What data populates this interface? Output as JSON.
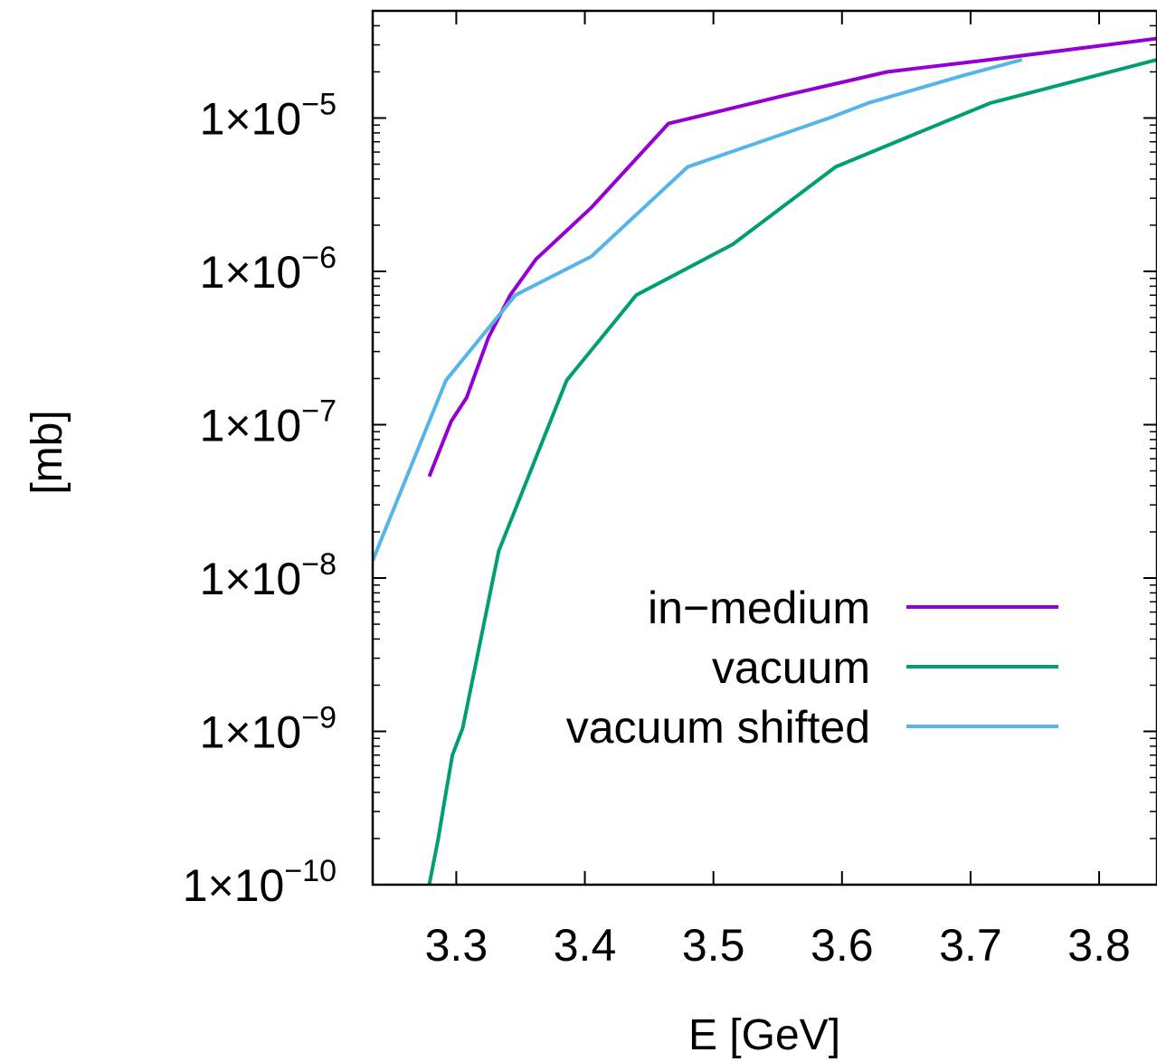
{
  "chart_data": {
    "type": "line",
    "xlabel": "E [GeV]",
    "ylabel": "[mb]",
    "xlim": [
      3.235,
      3.845
    ],
    "ylim": [
      1e-10,
      5e-05
    ],
    "yscale": "log",
    "grid": false,
    "legend_position": "right-center",
    "xticks": [
      "3.3",
      "3.4",
      "3.5",
      "3.6",
      "3.7",
      "3.8"
    ],
    "yticks": [
      {
        "value": 1e-10,
        "mantissa": "1×10",
        "exponent": "−10"
      },
      {
        "value": 1e-09,
        "mantissa": "1×10",
        "exponent": "−9"
      },
      {
        "value": 1e-08,
        "mantissa": "1×10",
        "exponent": "−8"
      },
      {
        "value": 1e-07,
        "mantissa": "1×10",
        "exponent": "−7"
      },
      {
        "value": 1e-06,
        "mantissa": "1×10",
        "exponent": "−6"
      },
      {
        "value": 1e-05,
        "mantissa": "1×10",
        "exponent": "−5"
      }
    ],
    "series": [
      {
        "name": "in−medium",
        "color": "#9400d3",
        "x": [
          3.279,
          3.296,
          3.308,
          3.325,
          3.342,
          3.362,
          3.405,
          3.465,
          3.555,
          3.635,
          3.715,
          3.845
        ],
        "y": [
          4.6e-08,
          1.05e-07,
          1.5e-07,
          3.7e-07,
          7e-07,
          1.2e-06,
          2.6e-06,
          9.2e-06,
          1.4e-05,
          2e-05,
          2.4e-05,
          3.3e-05
        ]
      },
      {
        "name": "vacuum",
        "color": "#009e73",
        "x": [
          3.279,
          3.286,
          3.292,
          3.297,
          3.305,
          3.333,
          3.386,
          3.44,
          3.515,
          3.595,
          3.715,
          3.845
        ],
        "y": [
          1e-10,
          2e-10,
          4e-10,
          7e-10,
          1.05e-09,
          1.5e-08,
          1.95e-07,
          7e-07,
          1.5e-06,
          4.8e-06,
          1.25e-05,
          2.4e-05
        ]
      },
      {
        "name": "vacuum shifted",
        "color": "#56b4e9",
        "x": [
          3.235,
          3.292,
          3.346,
          3.405,
          3.48,
          3.59,
          3.62,
          3.695,
          3.74
        ],
        "y": [
          1.3e-08,
          1.95e-07,
          7e-07,
          1.25e-06,
          4.8e-06,
          1e-05,
          1.25e-05,
          1.9e-05,
          2.4e-05
        ]
      }
    ]
  }
}
